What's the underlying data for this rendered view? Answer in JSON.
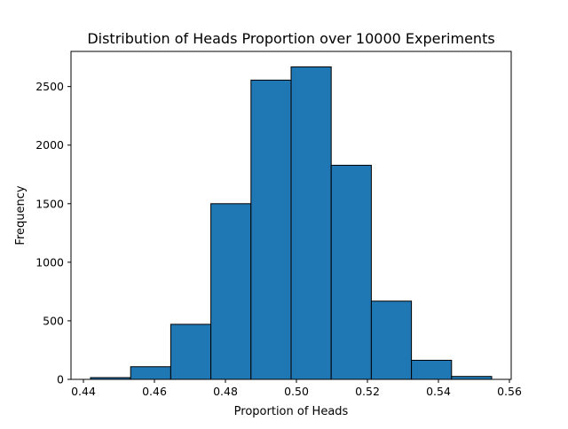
{
  "chart_data": {
    "type": "bar",
    "subtype": "histogram",
    "title": "Distribution of Heads Proportion over 10000 Experiments",
    "xlabel": "Proportion of Heads",
    "ylabel": "Frequency",
    "xlim": [
      0.4365,
      0.5605
    ],
    "ylim": [
      0,
      2800
    ],
    "xticks": [
      0.44,
      0.46,
      0.48,
      0.5,
      0.52,
      0.54,
      0.56
    ],
    "xtick_labels": [
      "0.44",
      "0.46",
      "0.48",
      "0.50",
      "0.52",
      "0.54",
      "0.56"
    ],
    "yticks": [
      0,
      500,
      1000,
      1500,
      2000,
      2500
    ],
    "ytick_labels": [
      "0",
      "500",
      "1000",
      "1500",
      "2000",
      "2500"
    ],
    "bin_edges": [
      0.442,
      0.4533,
      0.4646,
      0.4759,
      0.4872,
      0.4985,
      0.5098,
      0.5211,
      0.5324,
      0.5437,
      0.555
    ],
    "values": [
      15,
      108,
      470,
      1500,
      2555,
      2668,
      1828,
      668,
      163,
      25
    ],
    "grid": false,
    "legend": "none",
    "colors": {
      "bar_fill": "#1f77b4",
      "bar_edge": "#000000",
      "axis": "#000000",
      "background": "#ffffff"
    }
  }
}
